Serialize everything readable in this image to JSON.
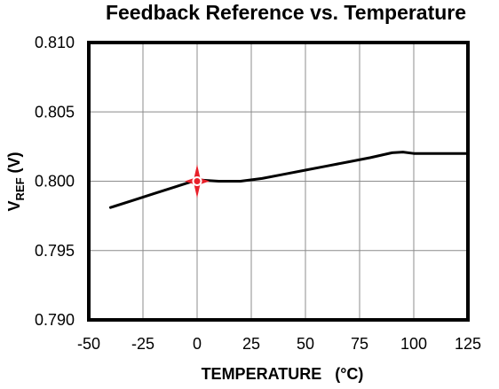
{
  "chart_data": {
    "type": "line",
    "title": "Feedback Reference vs. Temperature",
    "xlabel": "TEMPERATURE   (°C)",
    "ylabel": {
      "main": "V",
      "sub": "REF",
      "rest": " (V)"
    },
    "xlim": [
      -50,
      125
    ],
    "ylim": [
      0.79,
      0.81
    ],
    "xticks": [
      "-50",
      "-25",
      "0",
      "25",
      "50",
      "75",
      "100",
      "125"
    ],
    "xtick_values": [
      -50,
      -25,
      0,
      25,
      50,
      75,
      100,
      125
    ],
    "yticks": [
      "0.790",
      "0.795",
      "0.800",
      "0.805",
      "0.810"
    ],
    "ytick_values": [
      0.79,
      0.795,
      0.8,
      0.805,
      0.81
    ],
    "grid": true,
    "series": [
      {
        "x": [
          -40,
          -30,
          -20,
          -10,
          0,
          5,
          10,
          20,
          30,
          40,
          50,
          60,
          70,
          80,
          90,
          95,
          100,
          110,
          125
        ],
        "y": [
          0.7981,
          0.7986,
          0.7991,
          0.7996,
          0.8001,
          0.80005,
          0.8,
          0.8,
          0.8002,
          0.8005,
          0.8008,
          0.8011,
          0.8014,
          0.8017,
          0.80205,
          0.8021,
          0.802,
          0.802,
          0.802
        ]
      }
    ],
    "marker": {
      "x": 0,
      "y": 0.8,
      "color": "#e8202a"
    }
  }
}
